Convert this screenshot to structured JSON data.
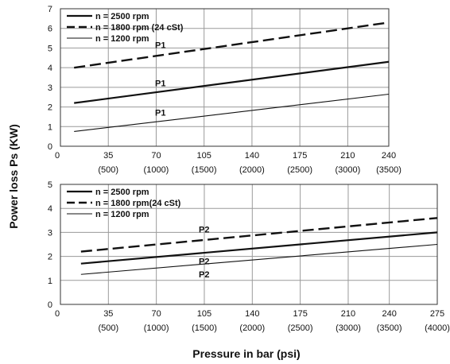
{
  "ylabel": "Power loss Ps (KW)",
  "xlabel": "Pressure in bar (psi)",
  "chart_data": [
    {
      "type": "line",
      "xlim": [
        0,
        240
      ],
      "ylim": [
        0,
        7
      ],
      "x_ticks": [
        0,
        35,
        70,
        105,
        140,
        175,
        210,
        240
      ],
      "x_tick_labels": [
        "0",
        "35",
        "70",
        "105",
        "140",
        "175",
        "210",
        "240"
      ],
      "x_tick_sublabels": [
        "",
        "(500)",
        "(1000)",
        "(1500)",
        "(2000)",
        "(2500)",
        "(3000)",
        "(3500)"
      ],
      "y_ticks": [
        0,
        1,
        2,
        3,
        4,
        5,
        6,
        7
      ],
      "y_tick_labels": [
        "0",
        "1",
        "2",
        "3",
        "4",
        "5",
        "6",
        "7"
      ],
      "grid": true,
      "legend_position": "top-left",
      "series": [
        {
          "name": "n = 2500 rpm",
          "style": "solid-thick",
          "label": "P1",
          "x": [
            10,
            240
          ],
          "y": [
            2.2,
            4.3
          ]
        },
        {
          "name": "n = 1800 rpm (24 cSt)",
          "style": "dashed",
          "label": "P1",
          "x": [
            10,
            240
          ],
          "y": [
            4.0,
            6.3
          ]
        },
        {
          "name": "n = 1200 rpm",
          "style": "solid-thin",
          "label": "P1",
          "x": [
            10,
            240
          ],
          "y": [
            0.75,
            2.65
          ]
        }
      ]
    },
    {
      "type": "line",
      "xlim": [
        0,
        275
      ],
      "ylim": [
        0,
        5
      ],
      "x_ticks": [
        0,
        35,
        70,
        105,
        140,
        175,
        210,
        240,
        275
      ],
      "x_tick_labels": [
        "0",
        "35",
        "70",
        "105",
        "140",
        "175",
        "210",
        "240",
        "275"
      ],
      "x_tick_sublabels": [
        "",
        "(500)",
        "(1000)",
        "(1500)",
        "(2000)",
        "(2500)",
        "(3000)",
        "(3500)",
        "(4000)"
      ],
      "y_ticks": [
        0,
        1,
        2,
        3,
        4,
        5
      ],
      "y_tick_labels": [
        "0",
        "1",
        "2",
        "3",
        "4",
        "5"
      ],
      "grid": true,
      "legend_position": "top-left",
      "series": [
        {
          "name": "n = 2500 rpm",
          "style": "solid-thick",
          "label": "P2",
          "x": [
            15,
            275
          ],
          "y": [
            1.7,
            3.0
          ]
        },
        {
          "name": "n = 1800 rpm(24 cSt)",
          "style": "dashed",
          "label": "P2",
          "x": [
            15,
            275
          ],
          "y": [
            2.2,
            3.6
          ]
        },
        {
          "name": "n = 1200 rpm",
          "style": "solid-thin",
          "label": "P2",
          "x": [
            15,
            275
          ],
          "y": [
            1.25,
            2.5
          ]
        }
      ]
    }
  ]
}
